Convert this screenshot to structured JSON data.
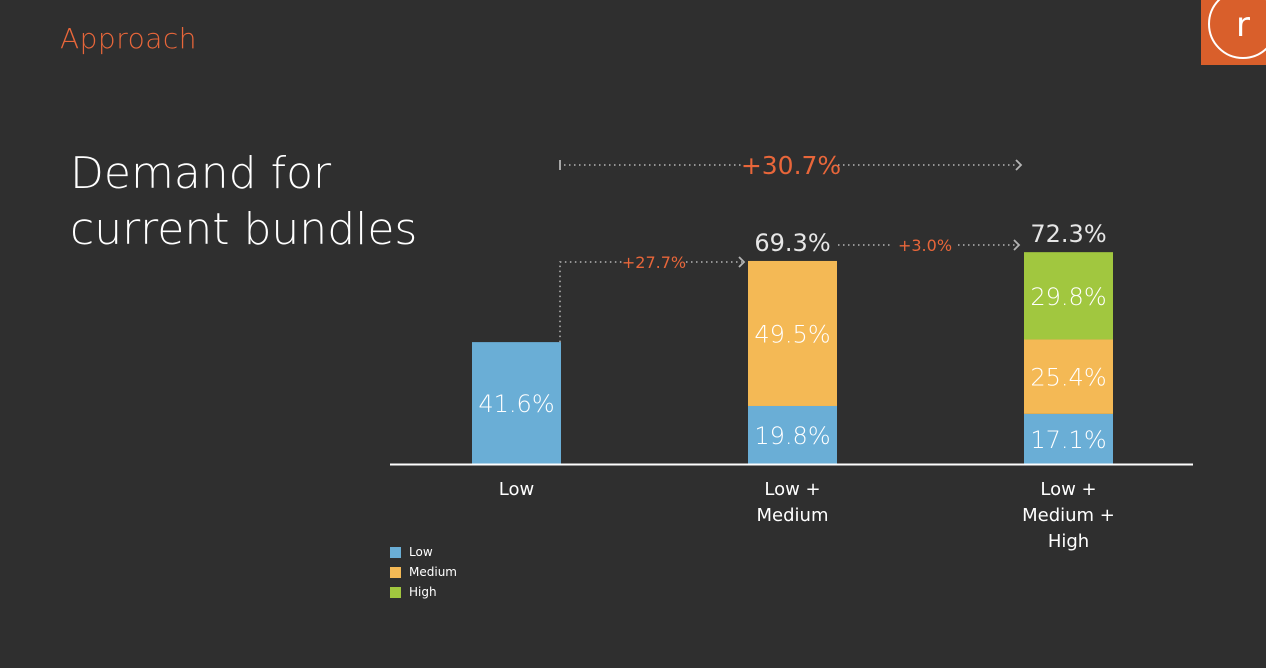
{
  "header": {
    "section": "Approach",
    "logo_letter": "r"
  },
  "title": {
    "line1": "Demand for",
    "line2": "current bundles"
  },
  "colors": {
    "background": "#2f2f2f",
    "accent": "#e8663a",
    "low": "#6aaed6",
    "medium": "#f4b955",
    "high": "#a1c73f",
    "total_label": "#e6e6e6",
    "arrow": "#b5b5b5"
  },
  "chart_data": {
    "type": "bar",
    "stacked": true,
    "categories": [
      [
        "Low"
      ],
      [
        "Low +",
        "Medium"
      ],
      [
        "Low +",
        "Medium +",
        "High"
      ]
    ],
    "series": [
      {
        "name": "Low",
        "values": [
          41.6,
          19.8,
          17.1
        ],
        "labels": [
          "41.6%",
          "19.8%",
          "17.1%"
        ]
      },
      {
        "name": "Medium",
        "values": [
          0,
          49.5,
          25.4
        ],
        "labels": [
          "",
          "49.5%",
          "25.4%"
        ]
      },
      {
        "name": "High",
        "values": [
          0,
          0,
          29.8
        ],
        "labels": [
          "",
          "",
          "29.8%"
        ]
      }
    ],
    "totals": [
      {
        "value": 41.6,
        "label": ""
      },
      {
        "value": 69.3,
        "label": "69.3%"
      },
      {
        "value": 72.3,
        "label": "72.3%"
      }
    ],
    "annotations": [
      {
        "from": 0,
        "to": 1,
        "label": "+27.7%"
      },
      {
        "from": 1,
        "to": 2,
        "label": "+3.0%"
      },
      {
        "from": 0,
        "to": 2,
        "label": "+30.7%"
      }
    ],
    "legend": [
      "Low",
      "Medium",
      "High"
    ],
    "legend_position": "bottom-left",
    "grid": false,
    "ylim": [
      0,
      80
    ]
  }
}
